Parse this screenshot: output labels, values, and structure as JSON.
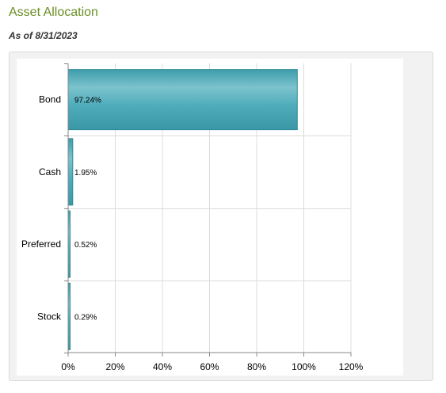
{
  "header": {
    "title": "Asset Allocation",
    "as_of": "As of 8/31/2023"
  },
  "chart_data": {
    "type": "bar",
    "orientation": "horizontal",
    "title": "",
    "xlabel": "",
    "ylabel": "",
    "categories": [
      "Bond",
      "Cash",
      "Preferred",
      "Stock"
    ],
    "values": [
      97.24,
      1.95,
      0.52,
      0.29
    ],
    "data_labels": [
      "97.24%",
      "1.95%",
      "0.52%",
      "0.29%"
    ],
    "xlim": [
      0,
      120
    ],
    "x_ticks": [
      0,
      20,
      40,
      60,
      80,
      100,
      120
    ],
    "x_tick_labels": [
      "0%",
      "20%",
      "40%",
      "60%",
      "80%",
      "100%",
      "120%"
    ],
    "grid": true,
    "legend": "none",
    "bar_color": "#4aa9b8"
  }
}
